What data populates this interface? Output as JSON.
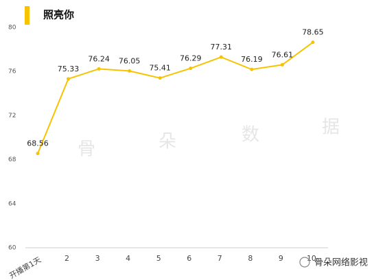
{
  "chart_data": {
    "type": "line",
    "title": "照亮你",
    "categories": [
      "开播第1天",
      "2",
      "3",
      "4",
      "5",
      "6",
      "7",
      "8",
      "9",
      "10"
    ],
    "series": [
      {
        "name": "照亮你",
        "color": "#f7c300",
        "values": [
          68.56,
          75.33,
          76.24,
          76.05,
          75.41,
          76.29,
          77.31,
          76.19,
          76.61,
          78.65
        ]
      }
    ],
    "ylim": [
      60,
      80
    ],
    "yticks": [
      60,
      64,
      68,
      72,
      76,
      80
    ],
    "watermarks": [
      "骨",
      "朵",
      "数",
      "据",
      "骨朵网络影视"
    ]
  }
}
